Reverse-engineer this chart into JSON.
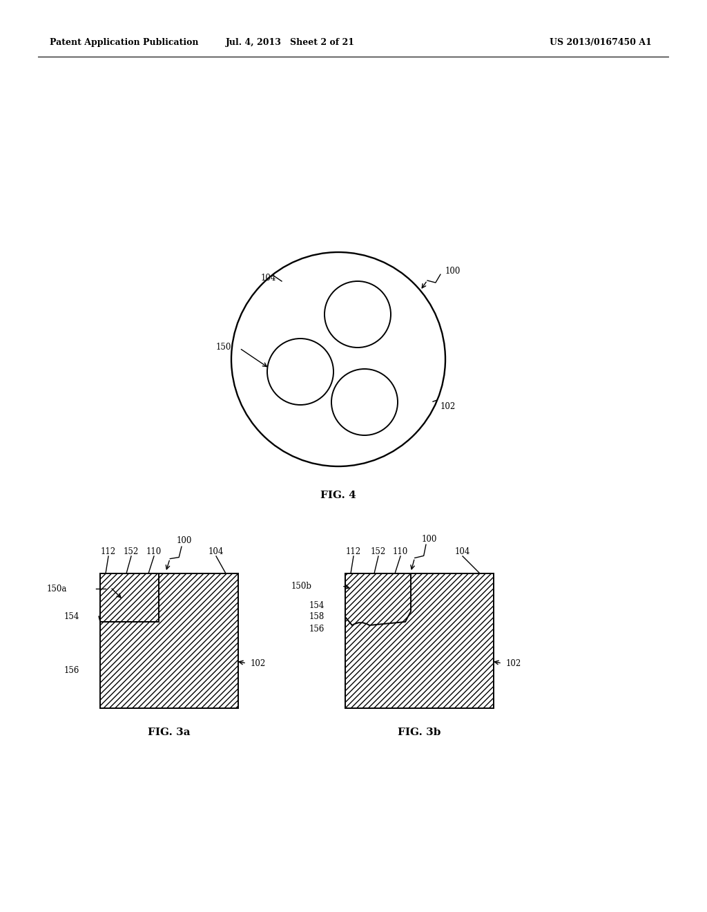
{
  "bg_color": "#ffffff",
  "header_left": "Patent Application Publication",
  "header_mid": "Jul. 4, 2013   Sheet 2 of 21",
  "header_right": "US 2013/0167450 A1",
  "fig3a_label": "FIG. 3a",
  "fig3b_label": "FIG. 3b",
  "fig4_label": "FIG. 4",
  "line_color": "#000000",
  "label_fontsize": 8.5,
  "header_fontsize": 9,
  "fig_label_fontsize": 11
}
